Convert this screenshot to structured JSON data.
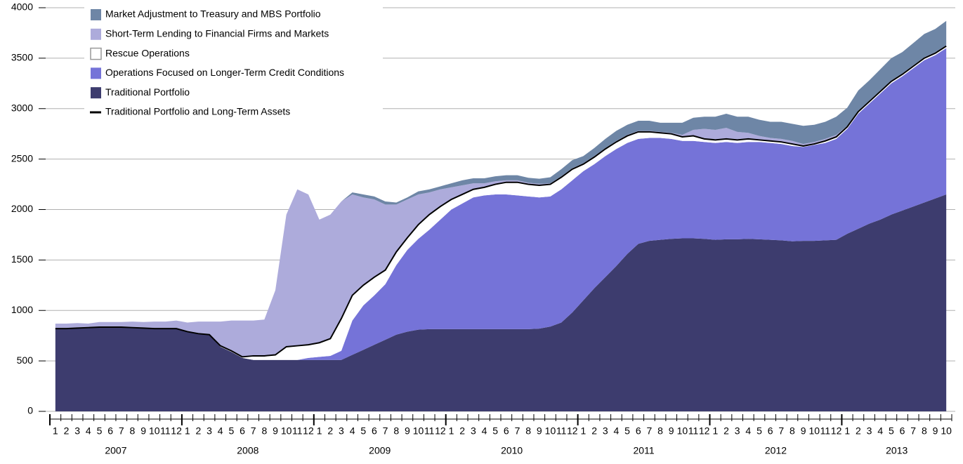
{
  "chart_data": {
    "type": "stacked-area",
    "categories": [
      "1",
      "2",
      "3",
      "4",
      "5",
      "6",
      "7",
      "8",
      "9",
      "10",
      "11",
      "12",
      "1",
      "2",
      "3",
      "4",
      "5",
      "6",
      "7",
      "8",
      "9",
      "10",
      "11",
      "12",
      "1",
      "2",
      "3",
      "4",
      "5",
      "6",
      "7",
      "8",
      "9",
      "10",
      "11",
      "12",
      "1",
      "2",
      "3",
      "4",
      "5",
      "6",
      "7",
      "8",
      "9",
      "10",
      "11",
      "12",
      "1",
      "2",
      "3",
      "4",
      "5",
      "6",
      "7",
      "8",
      "9",
      "10",
      "11",
      "12",
      "1",
      "2",
      "3",
      "4",
      "5",
      "6",
      "7",
      "8",
      "9",
      "10",
      "11",
      "12",
      "1",
      "2",
      "3",
      "4",
      "5",
      "6",
      "7",
      "8",
      "9",
      "10"
    ],
    "years": [
      "2007",
      "2008",
      "2009",
      "2010",
      "2011",
      "2012",
      "2013"
    ],
    "ylim": [
      0,
      4000
    ],
    "yticks": [
      0,
      500,
      1000,
      1500,
      2000,
      2500,
      3000,
      3500,
      4000
    ],
    "grid": true,
    "legend": "upper left",
    "series": [
      {
        "name": "Traditional Portfolio",
        "color": "#3d3c6e",
        "values": [
          820,
          820,
          825,
          830,
          835,
          835,
          835,
          830,
          825,
          820,
          820,
          820,
          790,
          770,
          760,
          640,
          590,
          530,
          510,
          510,
          510,
          510,
          510,
          510,
          510,
          510,
          510,
          560,
          610,
          660,
          710,
          760,
          790,
          810,
          815,
          815,
          815,
          815,
          815,
          815,
          815,
          815,
          815,
          815,
          820,
          840,
          880,
          980,
          1100,
          1220,
          1330,
          1440,
          1560,
          1660,
          1690,
          1700,
          1710,
          1715,
          1715,
          1710,
          1700,
          1705,
          1705,
          1710,
          1705,
          1700,
          1695,
          1685,
          1690,
          1690,
          1695,
          1700,
          1760,
          1810,
          1860,
          1900,
          1950,
          1990,
          2030,
          2070,
          2110,
          2150
        ]
      },
      {
        "name": "Operations Focused on Longer-Term Credit Conditions",
        "color": "#7573d8",
        "values": [
          0,
          0,
          0,
          0,
          0,
          0,
          0,
          0,
          0,
          0,
          0,
          0,
          0,
          0,
          0,
          0,
          0,
          0,
          0,
          0,
          0,
          0,
          0,
          20,
          30,
          40,
          90,
          340,
          440,
          490,
          550,
          690,
          810,
          900,
          985,
          1085,
          1185,
          1245,
          1305,
          1325,
          1335,
          1335,
          1325,
          1315,
          1300,
          1290,
          1320,
          1310,
          1280,
          1230,
          1200,
          1160,
          1100,
          1040,
          1020,
          1010,
          990,
          965,
          965,
          960,
          960,
          965,
          955,
          960,
          965,
          960,
          955,
          945,
          930,
          950,
          965,
          1000,
          1040,
          1140,
          1190,
          1250,
          1300,
          1330,
          1370,
          1410,
          1420,
          1450
        ]
      },
      {
        "name": "Rescue Operations",
        "color": "#ffffff",
        "values": [
          0,
          0,
          0,
          0,
          0,
          0,
          0,
          0,
          0,
          0,
          0,
          0,
          0,
          0,
          0,
          10,
          10,
          10,
          40,
          40,
          50,
          130,
          140,
          130,
          140,
          170,
          320,
          250,
          200,
          180,
          140,
          130,
          120,
          140,
          150,
          130,
          100,
          90,
          80,
          80,
          100,
          120,
          130,
          120,
          120,
          120,
          120,
          110,
          70,
          70,
          70,
          70,
          70,
          70,
          60,
          50,
          50,
          40,
          50,
          30,
          30,
          30,
          30,
          30,
          20,
          20,
          20,
          20,
          10,
          10,
          20,
          20,
          20,
          20,
          20,
          20,
          20,
          20,
          20,
          20,
          20,
          20
        ]
      },
      {
        "name": "Short-Term Lending to Financial Firms and Markets",
        "color": "#adabdb",
        "values": [
          50,
          50,
          50,
          40,
          50,
          50,
          50,
          60,
          60,
          70,
          70,
          80,
          90,
          120,
          130,
          240,
          300,
          360,
          350,
          360,
          640,
          1310,
          1550,
          1490,
          1220,
          1230,
          1160,
          1000,
          870,
          770,
          650,
          470,
          380,
          300,
          220,
          170,
          120,
          90,
          60,
          40,
          30,
          20,
          20,
          15,
          15,
          10,
          10,
          10,
          10,
          10,
          10,
          10,
          10,
          10,
          10,
          10,
          10,
          20,
          60,
          100,
          100,
          110,
          80,
          60,
          40,
          30,
          30,
          30,
          20,
          20,
          20,
          20,
          10,
          10,
          10,
          10,
          10,
          10,
          10,
          10,
          10,
          10
        ]
      },
      {
        "name": "Market Adjustment to Treasury and MBS Portfolio",
        "color": "#6e86a6",
        "values": [
          0,
          0,
          0,
          0,
          0,
          0,
          0,
          0,
          0,
          0,
          0,
          0,
          0,
          0,
          0,
          0,
          0,
          0,
          0,
          0,
          0,
          0,
          0,
          0,
          0,
          0,
          0,
          20,
          30,
          30,
          30,
          20,
          20,
          30,
          30,
          30,
          40,
          50,
          50,
          50,
          50,
          50,
          50,
          50,
          50,
          60,
          70,
          80,
          70,
          80,
          90,
          100,
          100,
          100,
          100,
          90,
          100,
          120,
          120,
          120,
          130,
          140,
          150,
          160,
          160,
          160,
          170,
          170,
          180,
          170,
          170,
          180,
          180,
          200,
          200,
          210,
          220,
          210,
          220,
          230,
          230,
          240
        ]
      },
      {
        "name": "Traditional Portfolio and Long-Term Assets",
        "type": "line",
        "color": "#000000",
        "values": [
          820,
          820,
          825,
          830,
          835,
          835,
          835,
          830,
          825,
          820,
          820,
          820,
          790,
          770,
          760,
          650,
          600,
          540,
          550,
          550,
          560,
          640,
          650,
          660,
          680,
          720,
          920,
          1150,
          1250,
          1330,
          1400,
          1580,
          1720,
          1850,
          1950,
          2030,
          2100,
          2150,
          2200,
          2220,
          2250,
          2270,
          2270,
          2250,
          2240,
          2250,
          2320,
          2400,
          2450,
          2520,
          2600,
          2670,
          2730,
          2770,
          2770,
          2760,
          2750,
          2720,
          2730,
          2700,
          2690,
          2700,
          2690,
          2700,
          2690,
          2680,
          2670,
          2650,
          2630,
          2650,
          2680,
          2720,
          2820,
          2970,
          3070,
          3170,
          3270,
          3340,
          3420,
          3500,
          3550,
          3620
        ]
      }
    ]
  }
}
